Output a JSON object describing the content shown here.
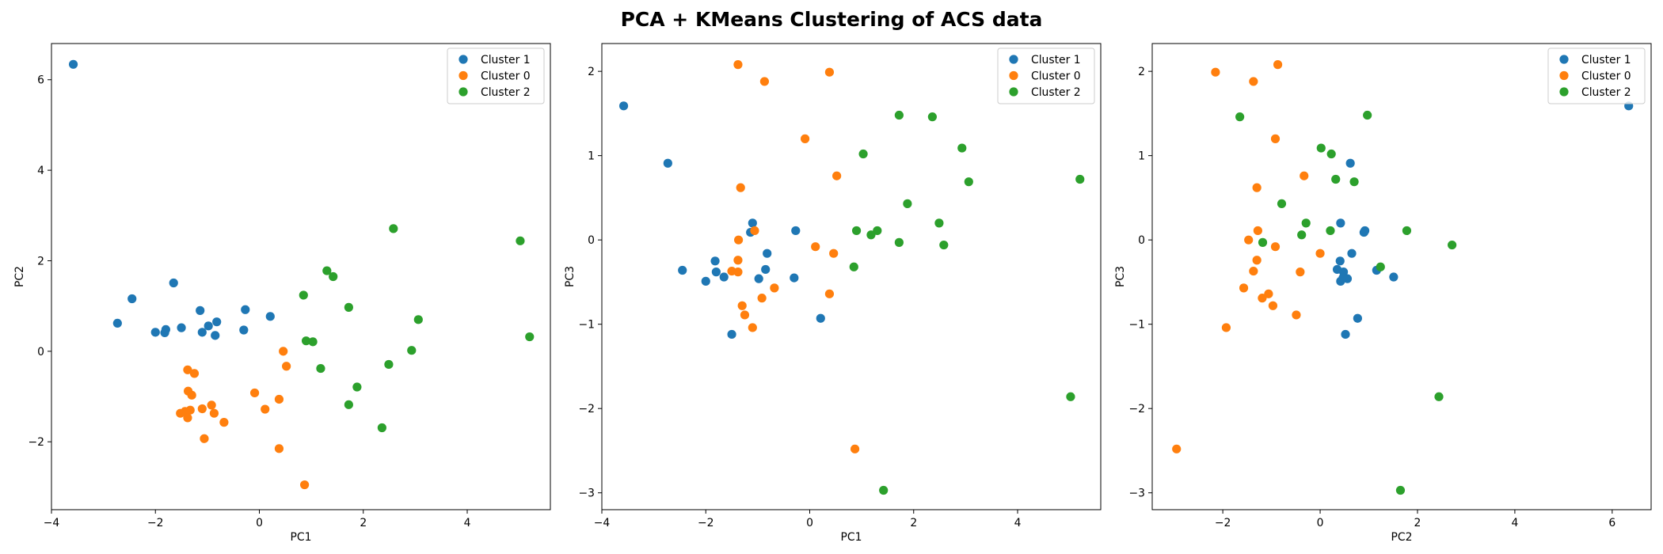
{
  "figure_title": "PCA + KMeans Clustering of ACS data",
  "colors": {
    "Cluster 0": "#ff7f0e",
    "Cluster 1": "#1f77b4",
    "Cluster 2": "#2ca02c"
  },
  "chart_data": [
    {
      "type": "scatter",
      "xlabel": "PC1",
      "ylabel": "PC2",
      "xlim": [
        -4,
        5.6
      ],
      "ylim": [
        -3.5,
        6.8
      ],
      "xticks": [
        -4,
        -2,
        0,
        2,
        4
      ],
      "yticks": [
        -2,
        0,
        2,
        4,
        6
      ],
      "grid": false,
      "legend_position": "top-right",
      "series": [
        {
          "name": "Cluster 1",
          "points": [
            [
              -3.58,
              6.34
            ],
            [
              -2.45,
              1.16
            ],
            [
              -1.65,
              1.51
            ],
            [
              -2.73,
              0.62
            ],
            [
              -2.0,
              0.42
            ],
            [
              -1.82,
              0.41
            ],
            [
              -1.8,
              0.48
            ],
            [
              -1.5,
              0.52
            ],
            [
              -1.14,
              0.9
            ],
            [
              -1.1,
              0.42
            ],
            [
              -0.98,
              0.56
            ],
            [
              -0.85,
              0.35
            ],
            [
              -0.82,
              0.65
            ],
            [
              -0.27,
              0.92
            ],
            [
              -0.3,
              0.47
            ],
            [
              0.21,
              0.77
            ]
          ]
        },
        {
          "name": "Cluster 0",
          "points": [
            [
              0.46,
              0.0
            ],
            [
              0.52,
              -0.33
            ],
            [
              -1.38,
              -0.41
            ],
            [
              -1.25,
              -0.49
            ],
            [
              -1.37,
              -0.88
            ],
            [
              -1.3,
              -0.97
            ],
            [
              -0.92,
              -1.19
            ],
            [
              -1.1,
              -1.27
            ],
            [
              -1.33,
              -1.3
            ],
            [
              -1.43,
              -1.33
            ],
            [
              -1.52,
              -1.37
            ],
            [
              -0.87,
              -1.37
            ],
            [
              -1.38,
              -1.47
            ],
            [
              -0.68,
              -1.57
            ],
            [
              -1.06,
              -1.93
            ],
            [
              -0.09,
              -0.92
            ],
            [
              0.11,
              -1.28
            ],
            [
              0.38,
              -1.06
            ],
            [
              0.38,
              -2.15
            ],
            [
              0.87,
              -2.95
            ]
          ]
        },
        {
          "name": "Cluster 2",
          "points": [
            [
              2.58,
              2.71
            ],
            [
              5.02,
              2.44
            ],
            [
              1.3,
              1.78
            ],
            [
              1.42,
              1.65
            ],
            [
              0.85,
              1.24
            ],
            [
              1.72,
              0.97
            ],
            [
              3.06,
              0.7
            ],
            [
              5.2,
              0.32
            ],
            [
              0.9,
              0.23
            ],
            [
              1.03,
              0.21
            ],
            [
              2.93,
              0.02
            ],
            [
              1.18,
              -0.38
            ],
            [
              2.49,
              -0.29
            ],
            [
              1.88,
              -0.79
            ],
            [
              1.72,
              -1.18
            ],
            [
              2.36,
              -1.69
            ]
          ]
        }
      ]
    },
    {
      "type": "scatter",
      "xlabel": "PC1",
      "ylabel": "PC3",
      "xlim": [
        -4,
        5.6
      ],
      "ylim": [
        -3.2,
        2.33
      ],
      "xticks": [
        -4,
        -2,
        0,
        2,
        4
      ],
      "yticks": [
        -3,
        -2,
        -1,
        0,
        1,
        2
      ],
      "grid": false,
      "legend_position": "top-right",
      "series": [
        {
          "name": "Cluster 1",
          "points": [
            [
              -3.58,
              1.59
            ],
            [
              -2.73,
              0.91
            ],
            [
              -2.45,
              -0.36
            ],
            [
              -2.0,
              -0.49
            ],
            [
              -1.82,
              -0.25
            ],
            [
              -1.8,
              -0.38
            ],
            [
              -1.65,
              -0.44
            ],
            [
              -1.5,
              -1.12
            ],
            [
              -1.14,
              0.09
            ],
            [
              -1.1,
              0.2
            ],
            [
              -0.98,
              -0.46
            ],
            [
              -0.85,
              -0.35
            ],
            [
              -0.82,
              -0.16
            ],
            [
              -0.3,
              -0.45
            ],
            [
              -0.27,
              0.11
            ],
            [
              0.21,
              -0.93
            ]
          ]
        },
        {
          "name": "Cluster 0",
          "points": [
            [
              -1.38,
              2.08
            ],
            [
              -0.87,
              1.88
            ],
            [
              0.38,
              1.99
            ],
            [
              -0.09,
              1.2
            ],
            [
              0.52,
              0.76
            ],
            [
              -1.33,
              0.62
            ],
            [
              -1.37,
              0.0
            ],
            [
              -1.06,
              0.11
            ],
            [
              0.11,
              -0.08
            ],
            [
              0.46,
              -0.16
            ],
            [
              -1.38,
              -0.24
            ],
            [
              -1.5,
              -0.37
            ],
            [
              -1.38,
              -0.38
            ],
            [
              -0.68,
              -0.57
            ],
            [
              -0.92,
              -0.69
            ],
            [
              -1.3,
              -0.78
            ],
            [
              -1.25,
              -0.89
            ],
            [
              -1.1,
              -1.04
            ],
            [
              0.38,
              -0.64
            ],
            [
              0.87,
              -2.48
            ]
          ]
        },
        {
          "name": "Cluster 2",
          "points": [
            [
              1.72,
              1.48
            ],
            [
              2.36,
              1.46
            ],
            [
              2.93,
              1.09
            ],
            [
              1.03,
              1.02
            ],
            [
              3.06,
              0.69
            ],
            [
              5.2,
              0.72
            ],
            [
              1.88,
              0.43
            ],
            [
              2.49,
              0.2
            ],
            [
              0.9,
              0.11
            ],
            [
              1.18,
              0.06
            ],
            [
              1.3,
              0.11
            ],
            [
              1.72,
              -0.03
            ],
            [
              2.58,
              -0.06
            ],
            [
              0.85,
              -0.32
            ],
            [
              5.02,
              -1.86
            ],
            [
              1.42,
              -2.97
            ]
          ]
        }
      ]
    },
    {
      "type": "scatter",
      "xlabel": "PC2",
      "ylabel": "PC3",
      "xlim": [
        -3.45,
        6.8
      ],
      "ylim": [
        -3.2,
        2.33
      ],
      "xticks": [
        -2,
        0,
        2,
        4,
        6
      ],
      "yticks": [
        -3,
        -2,
        -1,
        0,
        1,
        2
      ],
      "grid": false,
      "legend_position": "top-right",
      "series": [
        {
          "name": "Cluster 1",
          "points": [
            [
              6.34,
              1.59
            ],
            [
              0.62,
              0.91
            ],
            [
              1.16,
              -0.36
            ],
            [
              0.42,
              -0.49
            ],
            [
              0.41,
              -0.25
            ],
            [
              0.48,
              -0.38
            ],
            [
              1.51,
              -0.44
            ],
            [
              0.52,
              -1.12
            ],
            [
              0.9,
              0.09
            ],
            [
              0.42,
              0.2
            ],
            [
              0.56,
              -0.46
            ],
            [
              0.35,
              -0.35
            ],
            [
              0.65,
              -0.16
            ],
            [
              0.47,
              -0.45
            ],
            [
              0.92,
              0.11
            ],
            [
              0.77,
              -0.93
            ]
          ]
        },
        {
          "name": "Cluster 0",
          "points": [
            [
              -2.15,
              1.99
            ],
            [
              -1.37,
              1.88
            ],
            [
              -0.87,
              2.08
            ],
            [
              -0.92,
              1.2
            ],
            [
              -0.33,
              0.76
            ],
            [
              -1.3,
              0.62
            ],
            [
              -1.47,
              0.0
            ],
            [
              -1.28,
              0.11
            ],
            [
              -0.92,
              -0.08
            ],
            [
              0.0,
              -0.16
            ],
            [
              -1.3,
              -0.24
            ],
            [
              -1.37,
              -0.37
            ],
            [
              -0.41,
              -0.38
            ],
            [
              -1.57,
              -0.57
            ],
            [
              -1.06,
              -0.64
            ],
            [
              -1.19,
              -0.69
            ],
            [
              -0.97,
              -0.78
            ],
            [
              -1.93,
              -1.04
            ],
            [
              -0.49,
              -0.89
            ],
            [
              -2.95,
              -2.48
            ]
          ]
        },
        {
          "name": "Cluster 2",
          "points": [
            [
              -1.65,
              1.46
            ],
            [
              0.97,
              1.48
            ],
            [
              0.02,
              1.09
            ],
            [
              0.23,
              1.02
            ],
            [
              -0.79,
              0.43
            ],
            [
              0.7,
              0.69
            ],
            [
              0.32,
              0.72
            ],
            [
              -0.29,
              0.2
            ],
            [
              0.21,
              0.11
            ],
            [
              1.78,
              0.11
            ],
            [
              -0.38,
              0.06
            ],
            [
              -1.18,
              -0.03
            ],
            [
              2.71,
              -0.06
            ],
            [
              1.24,
              -0.32
            ],
            [
              2.44,
              -1.86
            ],
            [
              1.65,
              -2.97
            ]
          ]
        }
      ]
    }
  ]
}
